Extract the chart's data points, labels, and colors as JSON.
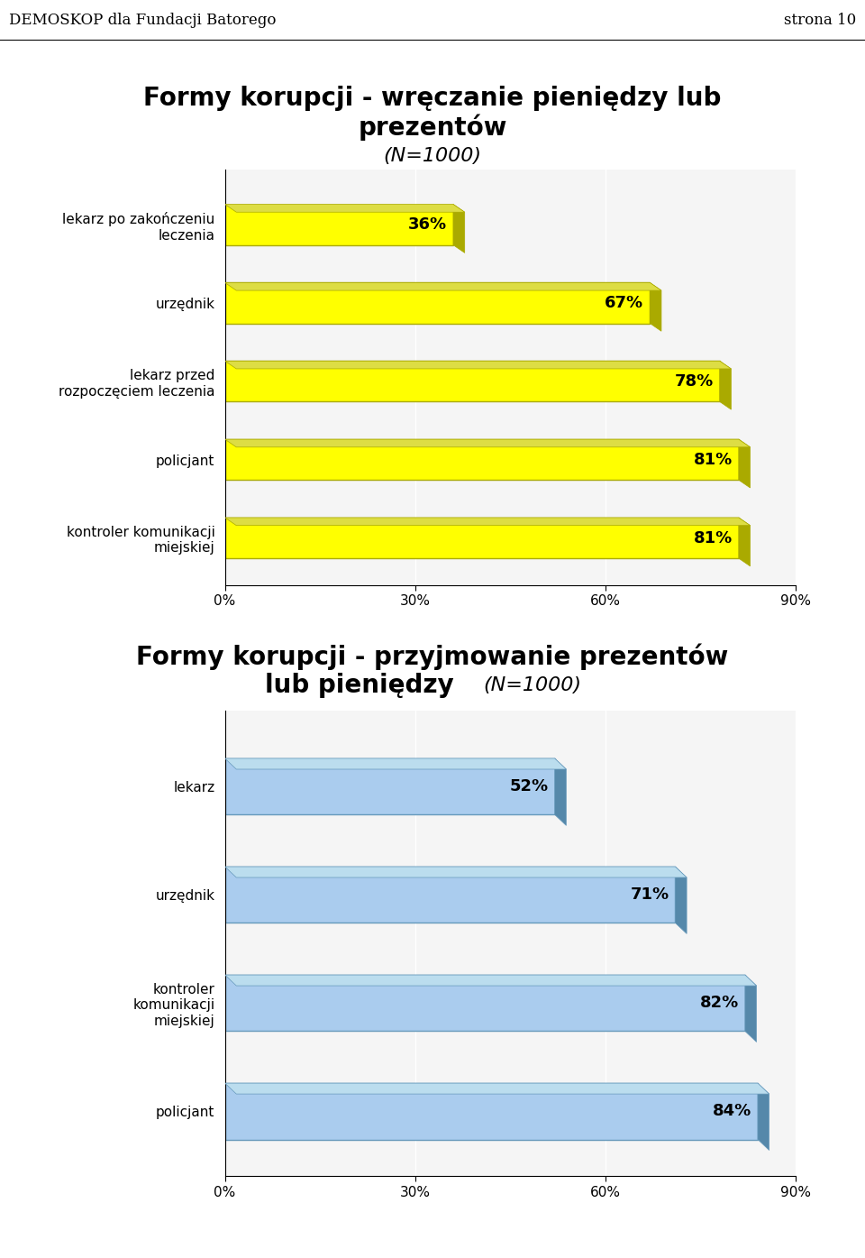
{
  "page_header_left": "DEMOSKOP dla Fundacji Batorego",
  "page_header_right": "strona 10",
  "chart1_title_line1": "Formy korupcji - wręczanie pieniędzy lub",
  "chart1_title_line2": "prezentów",
  "chart1_subtitle": "(N=1000)",
  "chart1_categories": [
    "kontroler komunikacji\nmiejskiej",
    "policjant",
    "lekarz przed\nrozpoczęciem leczenia",
    "urzędnik",
    "lekarz po zakończeniu\nleczenia"
  ],
  "chart1_values": [
    81,
    81,
    78,
    67,
    36
  ],
  "chart1_bar_color": "#FFFF00",
  "chart1_bar_edge_color": "#AAAA00",
  "chart1_depth_right_color": "#AAAA00",
  "chart1_depth_top_color": "#DDDD44",
  "chart1_xlim": [
    0,
    90
  ],
  "chart1_xticks": [
    0,
    30,
    60,
    90
  ],
  "chart1_xtick_labels": [
    "0%",
    "30%",
    "60%",
    "90%"
  ],
  "chart2_title_line1": "Formy korupcji - przyjmowanie prezentów",
  "chart2_title_line2": "lub pieniędzy",
  "chart2_subtitle": "(N=1000)",
  "chart2_categories": [
    "policjant",
    "kontroler\nkomunikacji\nmiejskiej",
    "urzędnik",
    "lekarz"
  ],
  "chart2_values": [
    84,
    82,
    71,
    52
  ],
  "chart2_bar_color": "#AACCEE",
  "chart2_bar_edge_color": "#6699BB",
  "chart2_depth_right_color": "#5588AA",
  "chart2_depth_top_color": "#BBDDEE",
  "chart2_xlim": [
    0,
    90
  ],
  "chart2_xticks": [
    0,
    30,
    60,
    90
  ],
  "chart2_xtick_labels": [
    "0%",
    "30%",
    "60%",
    "90%"
  ],
  "background_color": "#FFFFFF",
  "header_bg_color": "#C8C8C8",
  "chart_bg_color": "#F5F5F5",
  "title_fontsize": 20,
  "label_fontsize": 11,
  "tick_fontsize": 11,
  "value_fontsize": 13,
  "header_fontsize": 12
}
